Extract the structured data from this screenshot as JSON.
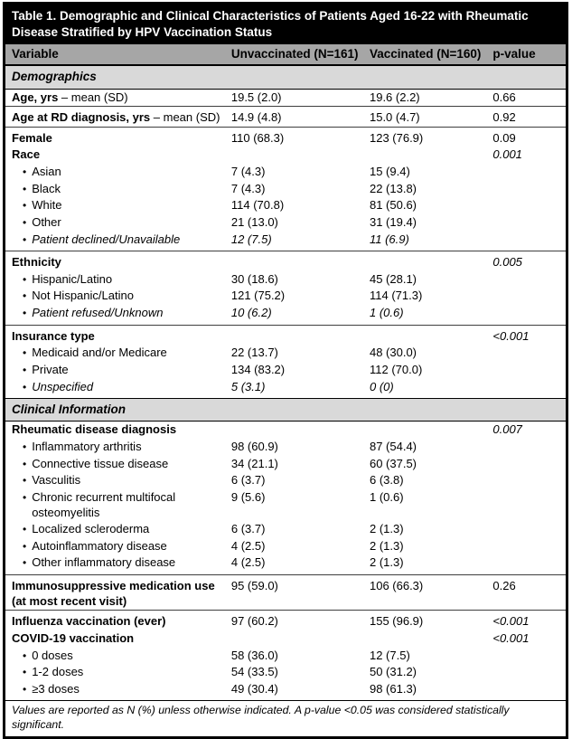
{
  "title": "Table 1. Demographic and Clinical Characteristics of Patients Aged 16-22 with Rheumatic Disease Stratified by HPV Vaccination Status",
  "footer": "Values are reported as N (%) unless otherwise indicated. A p-value <0.05 was considered statistically significant.",
  "colors": {
    "title_bg": "#000000",
    "title_text": "#ffffff",
    "header_bg": "#a6a6a6",
    "section_bg": "#d9d9d9",
    "body_text": "#000000",
    "border": "#000000"
  },
  "table": {
    "bullet": "•",
    "columns": [
      "Variable",
      "Unvaccinated (N=161)",
      "Vaccinated (N=160)",
      "p-value"
    ],
    "rows": [
      {
        "kind": "section",
        "label": "Demographics"
      },
      {
        "kind": "data",
        "label": "Age, yrs",
        "suffix": " – mean (SD)",
        "bold": true,
        "indent": false,
        "italic": false,
        "unvaccinated": "19.5 (2.0)",
        "vaccinated": "19.6 (2.2)",
        "p": "0.66",
        "pItalic": false,
        "divider": false
      },
      {
        "kind": "data",
        "label": "Age at RD diagnosis, yrs",
        "suffix": " – mean (SD)",
        "bold": true,
        "indent": false,
        "italic": false,
        "unvaccinated": "14.9 (4.8)",
        "vaccinated": "15.0 (4.7)",
        "p": "0.92",
        "pItalic": false,
        "divider": true
      },
      {
        "kind": "data",
        "label": "Female",
        "bold": true,
        "indent": false,
        "italic": false,
        "unvaccinated": "110 (68.3)",
        "vaccinated": "123 (76.9)",
        "p": "0.09",
        "pItalic": false,
        "divider": true
      },
      {
        "kind": "data",
        "label": "Race",
        "bold": true,
        "indent": false,
        "italic": false,
        "unvaccinated": "",
        "vaccinated": "",
        "p": "0.001",
        "pItalic": true,
        "divider": false
      },
      {
        "kind": "data",
        "label": "Asian",
        "bold": false,
        "indent": true,
        "italic": false,
        "unvaccinated": "7 (4.3)",
        "vaccinated": "15 (9.4)",
        "p": "",
        "pItalic": false,
        "divider": false
      },
      {
        "kind": "data",
        "label": "Black",
        "bold": false,
        "indent": true,
        "italic": false,
        "unvaccinated": "7 (4.3)",
        "vaccinated": "22 (13.8)",
        "p": "",
        "pItalic": false,
        "divider": false
      },
      {
        "kind": "data",
        "label": "White",
        "bold": false,
        "indent": true,
        "italic": false,
        "unvaccinated": "114 (70.8)",
        "vaccinated": "81 (50.6)",
        "p": "",
        "pItalic": false,
        "divider": false
      },
      {
        "kind": "data",
        "label": "Other",
        "bold": false,
        "indent": true,
        "italic": false,
        "unvaccinated": "21 (13.0)",
        "vaccinated": "31 (19.4)",
        "p": "",
        "pItalic": false,
        "divider": false
      },
      {
        "kind": "data",
        "label": "Patient declined/Unavailable",
        "bold": false,
        "indent": true,
        "italic": true,
        "unvaccinated": "12 (7.5)",
        "vaccinated": "11 (6.9)",
        "p": "",
        "pItalic": false,
        "divider": false,
        "padbottom": true
      },
      {
        "kind": "data",
        "label": "Ethnicity",
        "bold": true,
        "indent": false,
        "italic": false,
        "unvaccinated": "",
        "vaccinated": "",
        "p": "0.005",
        "pItalic": true,
        "divider": true
      },
      {
        "kind": "data",
        "label": "Hispanic/Latino",
        "bold": false,
        "indent": true,
        "italic": false,
        "unvaccinated": "30 (18.6)",
        "vaccinated": "45 (28.1)",
        "p": "",
        "pItalic": false,
        "divider": false
      },
      {
        "kind": "data",
        "label": "Not Hispanic/Latino",
        "bold": false,
        "indent": true,
        "italic": false,
        "unvaccinated": "121 (75.2)",
        "vaccinated": "114 (71.3)",
        "p": "",
        "pItalic": false,
        "divider": false
      },
      {
        "kind": "data",
        "label": "Patient refused/Unknown",
        "bold": false,
        "indent": true,
        "italic": true,
        "unvaccinated": "10 (6.2)",
        "vaccinated": "1 (0.6)",
        "p": "",
        "pItalic": false,
        "divider": false,
        "padbottom": true
      },
      {
        "kind": "data",
        "label": "Insurance type",
        "bold": true,
        "indent": false,
        "italic": false,
        "unvaccinated": "",
        "vaccinated": "",
        "p": "<0.001",
        "pItalic": true,
        "divider": true
      },
      {
        "kind": "data",
        "label": "Medicaid and/or Medicare",
        "bold": false,
        "indent": true,
        "italic": false,
        "unvaccinated": "22 (13.7)",
        "vaccinated": "48 (30.0)",
        "p": "",
        "pItalic": false,
        "divider": false
      },
      {
        "kind": "data",
        "label": "Private",
        "bold": false,
        "indent": true,
        "italic": false,
        "unvaccinated": "134 (83.2)",
        "vaccinated": "112 (70.0)",
        "p": "",
        "pItalic": false,
        "divider": false
      },
      {
        "kind": "data",
        "label": "Unspecified",
        "bold": false,
        "indent": true,
        "italic": true,
        "unvaccinated": "5 (3.1)",
        "vaccinated": "0 (0)",
        "p": "",
        "pItalic": false,
        "divider": false,
        "padbottom": true
      },
      {
        "kind": "section",
        "label": "Clinical Information"
      },
      {
        "kind": "data",
        "label": "Rheumatic disease diagnosis",
        "bold": true,
        "indent": false,
        "italic": false,
        "unvaccinated": "",
        "vaccinated": "",
        "p": "0.007",
        "pItalic": true,
        "divider": false
      },
      {
        "kind": "data",
        "label": "Inflammatory arthritis",
        "bold": false,
        "indent": true,
        "italic": false,
        "unvaccinated": "98 (60.9)",
        "vaccinated": "87 (54.4)",
        "p": "",
        "pItalic": false,
        "divider": false
      },
      {
        "kind": "data",
        "label": "Connective tissue disease",
        "bold": false,
        "indent": true,
        "italic": false,
        "unvaccinated": "34 (21.1)",
        "vaccinated": "60 (37.5)",
        "p": "",
        "pItalic": false,
        "divider": false
      },
      {
        "kind": "data",
        "label": "Vasculitis",
        "bold": false,
        "indent": true,
        "italic": false,
        "unvaccinated": "6 (3.7)",
        "vaccinated": "6 (3.8)",
        "p": "",
        "pItalic": false,
        "divider": false
      },
      {
        "kind": "data",
        "label": "Chronic recurrent multifocal osteomyelitis",
        "bold": false,
        "indent": true,
        "italic": false,
        "unvaccinated": "9 (5.6)",
        "vaccinated": "1 (0.6)",
        "p": "",
        "pItalic": false,
        "divider": false
      },
      {
        "kind": "data",
        "label": "Localized scleroderma",
        "bold": false,
        "indent": true,
        "italic": false,
        "unvaccinated": "6 (3.7)",
        "vaccinated": "2 (1.3)",
        "p": "",
        "pItalic": false,
        "divider": false
      },
      {
        "kind": "data",
        "label": "Autoinflammatory disease",
        "bold": false,
        "indent": true,
        "italic": false,
        "unvaccinated": "4 (2.5)",
        "vaccinated": "2 (1.3)",
        "p": "",
        "pItalic": false,
        "divider": false
      },
      {
        "kind": "data",
        "label": "Other inflammatory disease",
        "bold": false,
        "indent": true,
        "italic": false,
        "unvaccinated": "4 (2.5)",
        "vaccinated": "2 (1.3)",
        "p": "",
        "pItalic": false,
        "divider": false,
        "padbottom": true
      },
      {
        "kind": "data",
        "label": "Immunosuppressive medication use (at most recent visit)",
        "bold": true,
        "indent": false,
        "italic": false,
        "unvaccinated": "95 (59.0)",
        "vaccinated": "106 (66.3)",
        "p": "0.26",
        "pItalic": false,
        "divider": true
      },
      {
        "kind": "data",
        "label": "Influenza vaccination (ever)",
        "bold": true,
        "indent": false,
        "italic": false,
        "unvaccinated": "97 (60.2)",
        "vaccinated": "155 (96.9)",
        "p": "<0.001",
        "pItalic": true,
        "divider": true
      },
      {
        "kind": "data",
        "label": "COVID-19 vaccination",
        "bold": true,
        "indent": false,
        "italic": false,
        "unvaccinated": "",
        "vaccinated": "",
        "p": "<0.001",
        "pItalic": true,
        "divider": false
      },
      {
        "kind": "data",
        "label": "0 doses",
        "bold": false,
        "indent": true,
        "italic": false,
        "unvaccinated": "58 (36.0)",
        "vaccinated": "12 (7.5)",
        "p": "",
        "pItalic": false,
        "divider": false
      },
      {
        "kind": "data",
        "label": "1-2 doses",
        "bold": false,
        "indent": true,
        "italic": false,
        "unvaccinated": "54 (33.5)",
        "vaccinated": "50 (31.2)",
        "p": "",
        "pItalic": false,
        "divider": false
      },
      {
        "kind": "data",
        "label": "≥3 doses",
        "bold": false,
        "indent": true,
        "italic": false,
        "unvaccinated": "49 (30.4)",
        "vaccinated": "98 (61.3)",
        "p": "",
        "pItalic": false,
        "divider": false,
        "padbottom": true
      }
    ]
  }
}
